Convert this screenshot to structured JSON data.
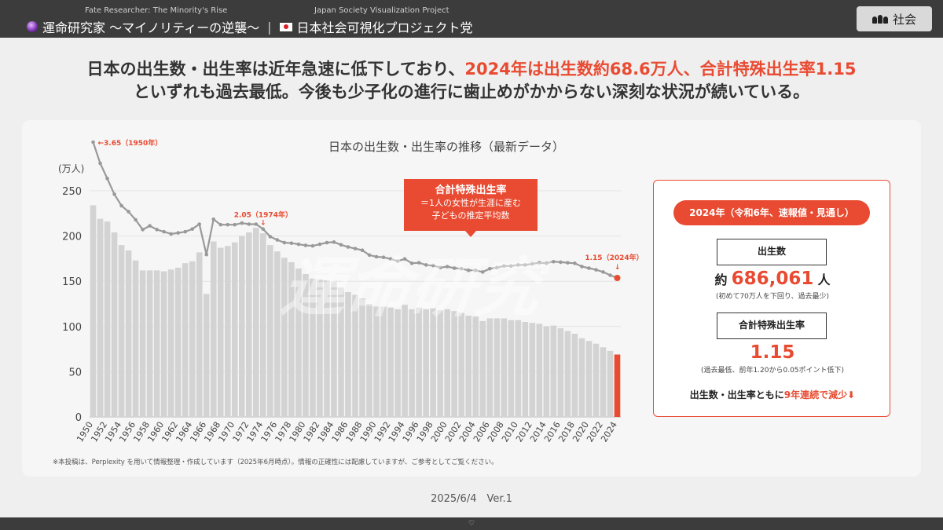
{
  "header": {
    "brand1_sub": "Fate Researcher: The Minority's Rise",
    "brand1_main": "運命研究家 〜マイノリティーの逆襲〜",
    "brand2_sub": "Japan Society Visualization Project",
    "brand2_main": "日本社会可視化プロジェクト党",
    "category_badge": "社会"
  },
  "headline": {
    "line1_pre": "日本の出生数・出生率は近年急速に低下しており、",
    "line1_red": "2024年は出生数約68.6万人、合計特殊出生率1.15",
    "line2": "といずれも過去最低。今後も少子化の進行に歯止めがかからない深刻な状況が続いている。"
  },
  "callout": {
    "title": "合計特殊出生率",
    "desc1": "＝1人の女性が生涯に産む",
    "desc2": "子どもの推定平均数"
  },
  "watermark": "運命研究",
  "summary": {
    "pill": "2024年（令和6年、速報値・見通し）",
    "births_label": "出生数",
    "births_prefix": "約",
    "births_value": "686,061",
    "births_unit": "人",
    "births_note": "(初めて70万人を下回り、過去最少)",
    "tfr_label": "合計特殊出生率",
    "tfr_value": "1.15",
    "tfr_note": "(過去最低、前年1.20から0.05ポイント低下)",
    "streak_pre": "出生数・出生率ともに",
    "streak_red": "9年連続で減少⬇"
  },
  "footnote": "※本投稿は、Perplexity を用いて情報整理・作成しています（2025年6月時点）。情報の正確性には配慮していますが、ご参考としてご覧ください。",
  "date": "2025/6/4　Ver.1",
  "bottom_mark": "♡",
  "colors": {
    "accent": "#e94b32",
    "bars": "#d3d3d3",
    "line": "#999999",
    "dark": "#3c3c3c"
  },
  "icons": {
    "brand1": "crystal-ball-icon",
    "brand2": "japan-flag-icon",
    "badge": "people-icon"
  },
  "chart_data": {
    "type": "bar",
    "title": "日本の出生数・出生率の推移（最新データ）",
    "ylabel": "(万人)",
    "ylim": [
      0,
      250
    ],
    "yticks": [
      0,
      50,
      100,
      150,
      200,
      250
    ],
    "x": [
      1950,
      1951,
      1952,
      1953,
      1954,
      1955,
      1956,
      1957,
      1958,
      1959,
      1960,
      1961,
      1962,
      1963,
      1964,
      1965,
      1966,
      1967,
      1968,
      1969,
      1970,
      1971,
      1972,
      1973,
      1974,
      1975,
      1976,
      1977,
      1978,
      1979,
      1980,
      1981,
      1982,
      1983,
      1984,
      1985,
      1986,
      1987,
      1988,
      1989,
      1990,
      1991,
      1992,
      1993,
      1994,
      1995,
      1996,
      1997,
      1998,
      1999,
      2000,
      2001,
      2002,
      2003,
      2004,
      2005,
      2006,
      2007,
      2008,
      2009,
      2010,
      2011,
      2012,
      2013,
      2014,
      2015,
      2016,
      2017,
      2018,
      2019,
      2020,
      2021,
      2022,
      2023,
      2024
    ],
    "x_tick_labels": [
      "1950",
      "1952",
      "1954",
      "1956",
      "1958",
      "1960",
      "1962",
      "1964",
      "1966",
      "1968",
      "1970",
      "1972",
      "1974",
      "1976",
      "1978",
      "1980",
      "1982",
      "1984",
      "1986",
      "1988",
      "1990",
      "1992",
      "1994",
      "1996",
      "1998",
      "2000",
      "2002",
      "2004",
      "2006",
      "2008",
      "2010",
      "2012",
      "2014",
      "2016",
      "2018",
      "2020",
      "2022",
      "2024"
    ],
    "series": [
      {
        "name": "出生数",
        "unit": "万人",
        "values": [
          234,
          219,
          216,
          204,
          190,
          184,
          173,
          162,
          162,
          162,
          161,
          163,
          165,
          170,
          172,
          182,
          136,
          194,
          187,
          189,
          193,
          200,
          204,
          209,
          203,
          190,
          183,
          176,
          171,
          164,
          158,
          153,
          152,
          151,
          149,
          143,
          138,
          135,
          131,
          125,
          122,
          122,
          121,
          119,
          124,
          119,
          121,
          119,
          120,
          118,
          119,
          117,
          115,
          112,
          111,
          106,
          109,
          109,
          109,
          107,
          107,
          105,
          104,
          103,
          100,
          101,
          98,
          95,
          92,
          87,
          84,
          81,
          77,
          73,
          69
        ],
        "highlight_last": true
      },
      {
        "name": "合計特殊出生率",
        "values": [
          3.65,
          3.26,
          2.98,
          2.69,
          2.48,
          2.37,
          2.22,
          2.04,
          2.11,
          2.04,
          2.0,
          1.96,
          1.98,
          2.0,
          2.05,
          2.14,
          1.58,
          2.23,
          2.13,
          2.13,
          2.13,
          2.16,
          2.14,
          2.14,
          2.05,
          1.91,
          1.85,
          1.8,
          1.79,
          1.77,
          1.75,
          1.74,
          1.77,
          1.8,
          1.81,
          1.76,
          1.72,
          1.69,
          1.66,
          1.57,
          1.54,
          1.53,
          1.5,
          1.46,
          1.5,
          1.42,
          1.43,
          1.39,
          1.38,
          1.34,
          1.36,
          1.33,
          1.32,
          1.29,
          1.29,
          1.26,
          1.32,
          1.34,
          1.37,
          1.37,
          1.39,
          1.39,
          1.41,
          1.43,
          1.42,
          1.45,
          1.44,
          1.43,
          1.42,
          1.36,
          1.33,
          1.3,
          1.26,
          1.2,
          1.15
        ]
      }
    ],
    "annotations": [
      {
        "year": 1950,
        "text": "←3.65（1950年）"
      },
      {
        "year": 1974,
        "text": "2.05（1974年）",
        "arrow": "↓"
      },
      {
        "year": 2024,
        "text": "1.15（2024年）",
        "arrow": "↓"
      }
    ]
  }
}
